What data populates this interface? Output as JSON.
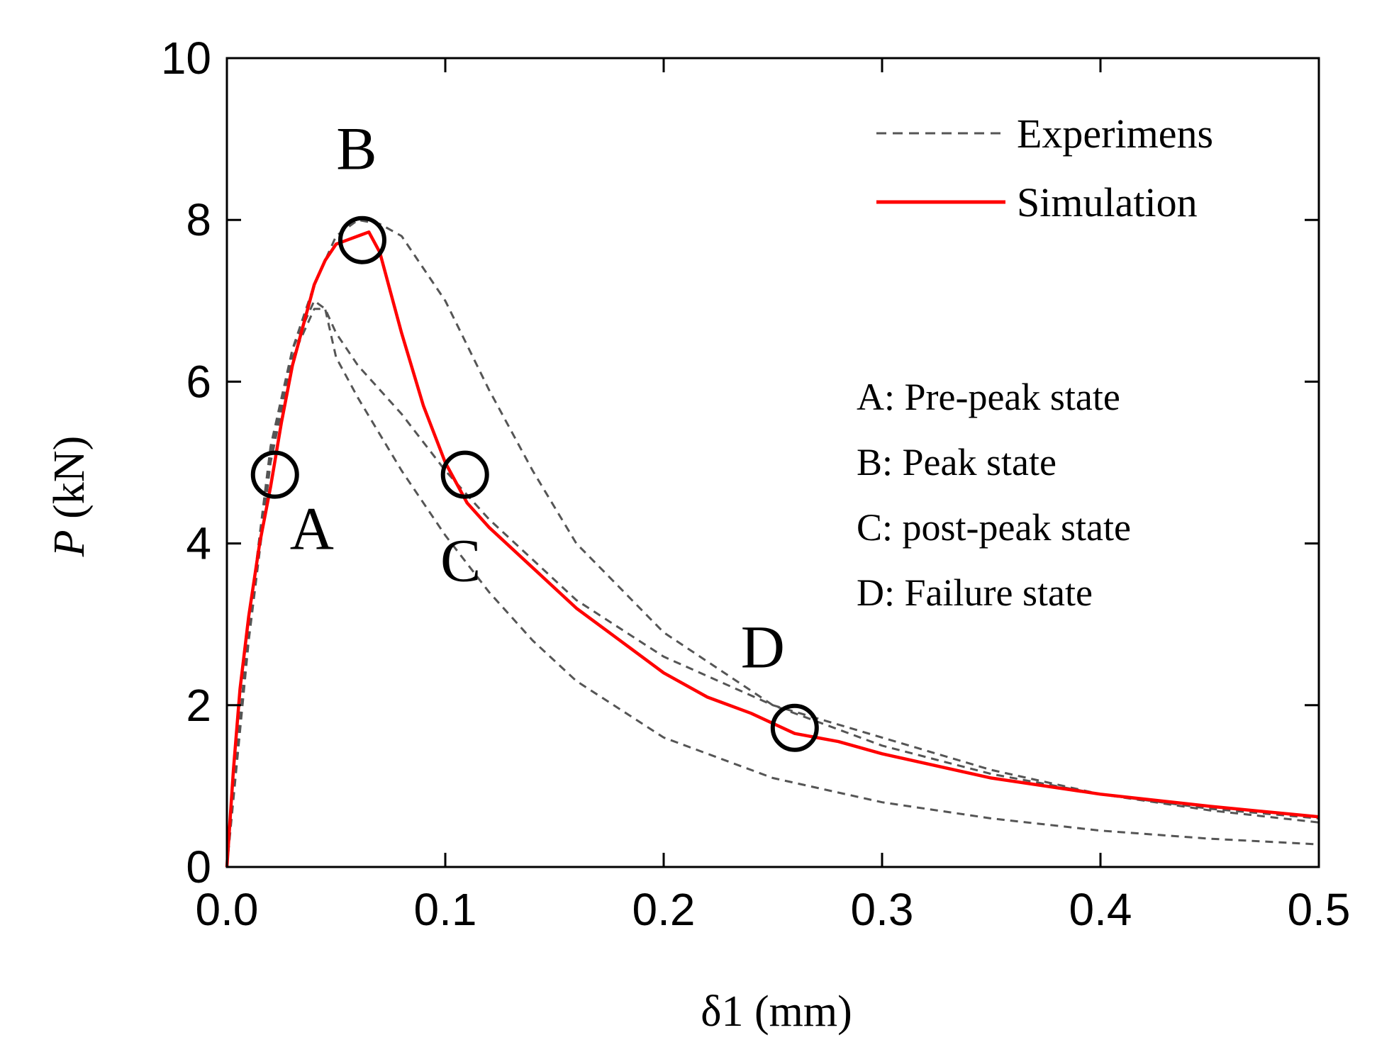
{
  "chart_data": {
    "type": "line",
    "xlabel": "δ1 (mm)",
    "ylabel_italic": "P",
    "ylabel_rest": " (kN)",
    "xlim": [
      0,
      0.5
    ],
    "ylim": [
      0,
      10
    ],
    "xticks": [
      "0.0",
      "0.1",
      "0.2",
      "0.3",
      "0.4",
      "0.5"
    ],
    "yticks": [
      "0",
      "2",
      "4",
      "6",
      "8",
      "10"
    ],
    "grid": false,
    "legend": {
      "placement": "top-right",
      "entries": [
        {
          "label": "Experimens",
          "style": "dashed",
          "color": "#555555"
        },
        {
          "label": "Simulation",
          "style": "solid",
          "color": "#ff0000"
        }
      ]
    },
    "series": [
      {
        "name": "Experimens",
        "style": "dashed",
        "color": "#555555",
        "x": [
          0,
          0.005,
          0.01,
          0.02,
          0.03,
          0.04,
          0.045,
          0.05,
          0.06,
          0.08,
          0.1,
          0.12,
          0.14,
          0.16,
          0.2,
          0.25,
          0.3,
          0.35,
          0.4,
          0.45,
          0.5
        ],
        "y": [
          0,
          1.5,
          3.0,
          5.2,
          6.4,
          7.0,
          6.9,
          6.6,
          6.2,
          5.6,
          4.9,
          4.3,
          3.8,
          3.3,
          2.6,
          2.0,
          1.6,
          1.2,
          0.9,
          0.7,
          0.55
        ]
      },
      {
        "name": "Experimens",
        "style": "dashed",
        "color": "#555555",
        "x": [
          0,
          0.005,
          0.01,
          0.02,
          0.03,
          0.04,
          0.045,
          0.05,
          0.06,
          0.08,
          0.1,
          0.12,
          0.14,
          0.16,
          0.2,
          0.25,
          0.3,
          0.35,
          0.4,
          0.45,
          0.5
        ],
        "y": [
          0,
          1.4,
          2.8,
          5.0,
          6.3,
          6.9,
          6.9,
          6.3,
          5.8,
          4.9,
          4.1,
          3.4,
          2.8,
          2.3,
          1.6,
          1.1,
          0.8,
          0.6,
          0.45,
          0.35,
          0.28
        ]
      },
      {
        "name": "Experimens",
        "style": "dashed",
        "color": "#555555",
        "x": [
          0,
          0.005,
          0.01,
          0.02,
          0.03,
          0.04,
          0.05,
          0.06,
          0.07,
          0.08,
          0.1,
          0.12,
          0.14,
          0.16,
          0.2,
          0.25,
          0.3,
          0.35,
          0.4,
          0.45,
          0.5
        ],
        "y": [
          0,
          1.5,
          3.0,
          5.1,
          6.4,
          7.2,
          7.8,
          8.0,
          7.95,
          7.8,
          7.0,
          5.9,
          4.9,
          4.0,
          2.9,
          2.0,
          1.5,
          1.15,
          0.9,
          0.72,
          0.6
        ]
      },
      {
        "name": "Simulation",
        "style": "solid",
        "color": "#ff0000",
        "x": [
          0,
          0.003,
          0.006,
          0.01,
          0.015,
          0.02,
          0.025,
          0.03,
          0.035,
          0.04,
          0.045,
          0.05,
          0.055,
          0.06,
          0.065,
          0.07,
          0.075,
          0.08,
          0.09,
          0.1,
          0.11,
          0.12,
          0.14,
          0.16,
          0.18,
          0.2,
          0.22,
          0.24,
          0.26,
          0.28,
          0.3,
          0.35,
          0.4,
          0.45,
          0.5
        ],
        "y": [
          0,
          1.2,
          2.2,
          3.1,
          4.0,
          4.7,
          5.5,
          6.2,
          6.7,
          7.2,
          7.5,
          7.7,
          7.75,
          7.8,
          7.85,
          7.6,
          7.1,
          6.6,
          5.7,
          5.0,
          4.5,
          4.2,
          3.7,
          3.2,
          2.8,
          2.4,
          2.1,
          1.9,
          1.65,
          1.55,
          1.4,
          1.1,
          0.9,
          0.75,
          0.62
        ]
      }
    ],
    "points": [
      {
        "label": "A",
        "x": 0.022,
        "y": 4.85
      },
      {
        "label": "B",
        "x": 0.062,
        "y": 7.75
      },
      {
        "label": "C",
        "x": 0.109,
        "y": 4.85
      },
      {
        "label": "D",
        "x": 0.26,
        "y": 1.72
      }
    ],
    "state_annotations": [
      "A: Pre-peak state",
      "B: Peak state",
      "C: post-peak state",
      "D: Failure state"
    ]
  }
}
